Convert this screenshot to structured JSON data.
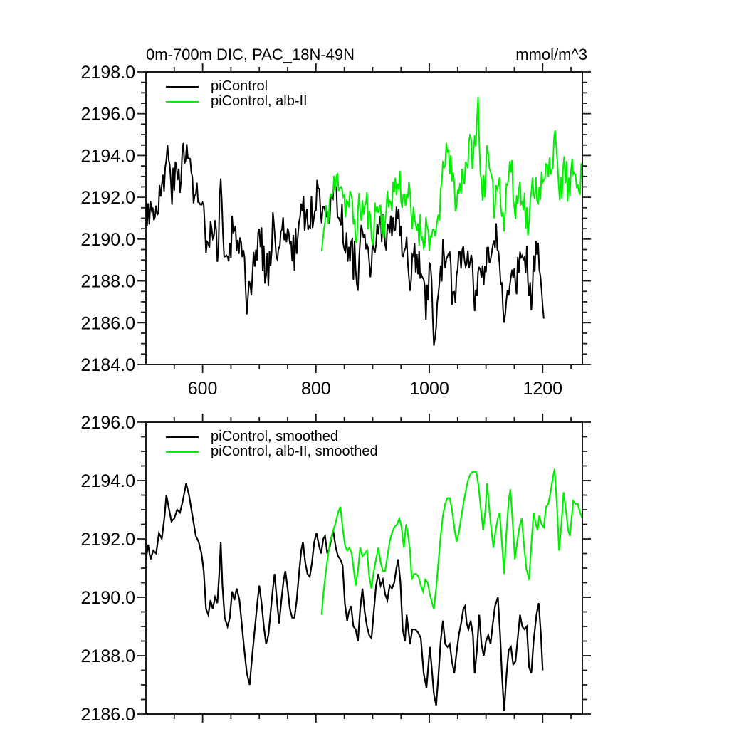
{
  "figure": {
    "background": "#ffffff",
    "text_color": "#000000",
    "frame_color": "#1a1a1a"
  },
  "chart_data": [
    {
      "type": "line",
      "title": "0m-700m DIC, PAC_18N-49N",
      "units_label": "mmol/m^3",
      "grid": false,
      "legend_position": "top-left-inside",
      "x_axis": {
        "min": 500,
        "max": 1270,
        "major_ticks": [
          600,
          800,
          1000,
          1200
        ],
        "major_tick_labels": [
          "600",
          "800",
          "1000",
          "1200"
        ],
        "minor_step": 50,
        "show_tick_labels": true
      },
      "y_axis": {
        "min": 2184,
        "max": 2198,
        "major_ticks": [
          2184,
          2186,
          2188,
          2190,
          2192,
          2194,
          2196,
          2198
        ],
        "major_tick_labels": [
          "2184.0",
          "2186.0",
          "2188.0",
          "2190.0",
          "2192.0",
          "2194.0",
          "2196.0",
          "2198.0"
        ],
        "minor_step": 0.5,
        "show_tick_labels": true
      },
      "legend": [
        {
          "label": "piControl",
          "color": "#000000"
        },
        {
          "label": "piControl, alb-II",
          "color": "#00ee00"
        }
      ],
      "series": [
        {
          "name": "piControl",
          "color": "#000000",
          "mode": "raw",
          "source": "piControl",
          "x_start": 500,
          "x_end": 1202,
          "stroke_width": 2,
          "noise": {
            "amplitude": 1.0,
            "step": 2,
            "seed": 3
          },
          "spikes": [
            [
              537,
              2194.5
            ],
            [
              566,
              2194.6
            ],
            [
              631,
              2192.9
            ],
            [
              678,
              2186.4
            ],
            [
              1007,
              2184.9
            ],
            [
              1131,
              2186.0
            ],
            [
              1201,
              2186.2
            ]
          ]
        },
        {
          "name": "piControl, alb-II",
          "color": "#00ee00",
          "mode": "raw",
          "source": "piControl_albII",
          "x_start": 810,
          "x_end": 1270,
          "stroke_width": 2,
          "noise": {
            "amplitude": 0.95,
            "step": 2,
            "seed": 11
          },
          "spikes": [
            [
              1029,
              2194.6
            ],
            [
              1086,
              2196.8
            ],
            [
              1101,
              2194.5
            ],
            [
              1221,
              2195.2
            ]
          ]
        }
      ]
    },
    {
      "type": "line",
      "title": "",
      "units_label": "",
      "grid": false,
      "legend_position": "top-left-inside",
      "x_axis": {
        "min": 500,
        "max": 1270,
        "major_ticks": [
          600,
          800,
          1000,
          1200
        ],
        "major_tick_labels": [],
        "minor_step": 50,
        "show_tick_labels": false
      },
      "y_axis": {
        "min": 2186,
        "max": 2196,
        "major_ticks": [
          2186,
          2188,
          2190,
          2192,
          2194,
          2196
        ],
        "major_tick_labels": [
          "2186.0",
          "2188.0",
          "2190.0",
          "2192.0",
          "2194.0",
          "2196.0"
        ],
        "minor_step": 0.5,
        "show_tick_labels": true
      },
      "legend": [
        {
          "label": "piControl, smoothed",
          "color": "#000000"
        },
        {
          "label": "piControl, alb-II, smoothed",
          "color": "#00ee00"
        }
      ],
      "series": [
        {
          "name": "piControl, smoothed",
          "color": "#000000",
          "mode": "smoothed",
          "source": "piControl",
          "stroke_width": 2.2
        },
        {
          "name": "piControl, alb-II, smoothed",
          "color": "#00ee00",
          "mode": "smoothed",
          "source": "piControl_albII",
          "stroke_width": 2.2
        }
      ]
    }
  ],
  "series_keyframes": {
    "piControl": [
      [
        500,
        2191.3
      ],
      [
        504,
        2191.8
      ],
      [
        508,
        2191.3
      ],
      [
        513,
        2191.6
      ],
      [
        518,
        2191.5
      ],
      [
        523,
        2192.2
      ],
      [
        528,
        2192.0
      ],
      [
        533,
        2192.8
      ],
      [
        536,
        2193.5
      ],
      [
        540,
        2193.1
      ],
      [
        545,
        2192.6
      ],
      [
        550,
        2192.7
      ],
      [
        555,
        2193.0
      ],
      [
        560,
        2192.9
      ],
      [
        565,
        2193.3
      ],
      [
        571,
        2193.9
      ],
      [
        576,
        2193.5
      ],
      [
        582,
        2192.8
      ],
      [
        588,
        2192.1
      ],
      [
        593,
        2191.9
      ],
      [
        598,
        2191.5
      ],
      [
        602,
        2190.9
      ],
      [
        606,
        2189.6
      ],
      [
        610,
        2189.4
      ],
      [
        614,
        2189.9
      ],
      [
        618,
        2189.6
      ],
      [
        622,
        2190.0
      ],
      [
        626,
        2189.8
      ],
      [
        630,
        2191.0
      ],
      [
        632,
        2191.9
      ],
      [
        635,
        2190.4
      ],
      [
        639,
        2189.3
      ],
      [
        644,
        2189.0
      ],
      [
        648,
        2189.3
      ],
      [
        652,
        2190.2
      ],
      [
        656,
        2189.9
      ],
      [
        660,
        2190.3
      ],
      [
        665,
        2189.9
      ],
      [
        669,
        2189.1
      ],
      [
        673,
        2188.3
      ],
      [
        678,
        2187.4
      ],
      [
        683,
        2187.0
      ],
      [
        687,
        2187.9
      ],
      [
        692,
        2188.9
      ],
      [
        697,
        2189.9
      ],
      [
        700,
        2190.4
      ],
      [
        704,
        2189.8
      ],
      [
        708,
        2189.0
      ],
      [
        712,
        2188.4
      ],
      [
        716,
        2188.7
      ],
      [
        720,
        2189.5
      ],
      [
        724,
        2190.3
      ],
      [
        727,
        2190.8
      ],
      [
        731,
        2189.9
      ],
      [
        735,
        2189.1
      ],
      [
        739,
        2189.9
      ],
      [
        743,
        2190.6
      ],
      [
        746,
        2190.9
      ],
      [
        750,
        2190.3
      ],
      [
        754,
        2189.6
      ],
      [
        758,
        2189.3
      ],
      [
        762,
        2189.3
      ],
      [
        766,
        2189.9
      ],
      [
        770,
        2190.8
      ],
      [
        774,
        2191.6
      ],
      [
        777,
        2191.9
      ],
      [
        781,
        2191.2
      ],
      [
        785,
        2190.8
      ],
      [
        789,
        2190.7
      ],
      [
        793,
        2191.2
      ],
      [
        797,
        2191.9
      ],
      [
        801,
        2192.2
      ],
      [
        805,
        2191.8
      ],
      [
        809,
        2191.5
      ],
      [
        813,
        2192.0
      ],
      [
        816,
        2192.1
      ],
      [
        820,
        2191.5
      ],
      [
        824,
        2191.7
      ],
      [
        828,
        2192.1
      ],
      [
        831,
        2192.2
      ],
      [
        835,
        2191.7
      ],
      [
        839,
        2191.4
      ],
      [
        843,
        2191.3
      ],
      [
        847,
        2191.1
      ],
      [
        851,
        2189.8
      ],
      [
        855,
        2189.2
      ],
      [
        858,
        2189.5
      ],
      [
        862,
        2189.7
      ],
      [
        866,
        2189.0
      ],
      [
        870,
        2188.9
      ],
      [
        874,
        2188.5
      ],
      [
        878,
        2189.6
      ],
      [
        882,
        2190.3
      ],
      [
        886,
        2189.5
      ],
      [
        890,
        2189.0
      ],
      [
        894,
        2188.7
      ],
      [
        898,
        2188.6
      ],
      [
        902,
        2189.5
      ],
      [
        906,
        2190.4
      ],
      [
        910,
        2190.8
      ],
      [
        914,
        2190.4
      ],
      [
        918,
        2190.6
      ],
      [
        922,
        2190.1
      ],
      [
        926,
        2189.9
      ],
      [
        930,
        2190.4
      ],
      [
        934,
        2190.3
      ],
      [
        938,
        2190.5
      ],
      [
        942,
        2191.0
      ],
      [
        945,
        2191.3
      ],
      [
        949,
        2190.5
      ],
      [
        953,
        2188.9
      ],
      [
        957,
        2188.5
      ],
      [
        960,
        2189.4
      ],
      [
        963,
        2188.9
      ],
      [
        966,
        2188.4
      ],
      [
        970,
        2188.9
      ],
      [
        975,
        2188.9
      ],
      [
        980,
        2188.8
      ],
      [
        985,
        2188.6
      ],
      [
        990,
        2187.4
      ],
      [
        995,
        2186.9
      ],
      [
        998,
        2187.6
      ],
      [
        1001,
        2188.3
      ],
      [
        1005,
        2187.4
      ],
      [
        1008,
        2186.7
      ],
      [
        1012,
        2186.3
      ],
      [
        1016,
        2187.3
      ],
      [
        1020,
        2188.5
      ],
      [
        1024,
        2189.2
      ],
      [
        1028,
        2188.4
      ],
      [
        1032,
        2188.3
      ],
      [
        1036,
        2188.4
      ],
      [
        1040,
        2187.8
      ],
      [
        1044,
        2187.4
      ],
      [
        1048,
        2188.1
      ],
      [
        1052,
        2188.7
      ],
      [
        1056,
        2189.1
      ],
      [
        1060,
        2189.6
      ],
      [
        1063,
        2189.7
      ],
      [
        1066,
        2189.1
      ],
      [
        1069,
        2188.9
      ],
      [
        1073,
        2189.2
      ],
      [
        1077,
        2188.7
      ],
      [
        1080,
        2187.4
      ],
      [
        1084,
        2188.2
      ],
      [
        1088,
        2189.4
      ],
      [
        1092,
        2188.4
      ],
      [
        1096,
        2188.0
      ],
      [
        1100,
        2188.5
      ],
      [
        1104,
        2188.7
      ],
      [
        1108,
        2188.4
      ],
      [
        1112,
        2189.1
      ],
      [
        1116,
        2189.7
      ],
      [
        1121,
        2190.0
      ],
      [
        1125,
        2188.7
      ],
      [
        1128,
        2187.4
      ],
      [
        1132,
        2186.1
      ],
      [
        1136,
        2187.3
      ],
      [
        1140,
        2188.2
      ],
      [
        1144,
        2188.3
      ],
      [
        1148,
        2187.7
      ],
      [
        1152,
        2187.8
      ],
      [
        1156,
        2188.6
      ],
      [
        1160,
        2189.4
      ],
      [
        1164,
        2189.0
      ],
      [
        1168,
        2188.9
      ],
      [
        1172,
        2189.0
      ],
      [
        1176,
        2187.6
      ],
      [
        1180,
        2187.4
      ],
      [
        1184,
        2188.5
      ],
      [
        1189,
        2189.4
      ],
      [
        1193,
        2189.8
      ],
      [
        1197,
        2188.7
      ],
      [
        1200,
        2187.5
      ]
    ],
    "piControl_albII": [
      [
        810,
        2189.4
      ],
      [
        813,
        2190.1
      ],
      [
        817,
        2190.8
      ],
      [
        821,
        2191.4
      ],
      [
        825,
        2191.9
      ],
      [
        829,
        2192.2
      ],
      [
        834,
        2192.5
      ],
      [
        839,
        2192.9
      ],
      [
        843,
        2193.1
      ],
      [
        847,
        2192.4
      ],
      [
        851,
        2191.8
      ],
      [
        855,
        2191.6
      ],
      [
        859,
        2191.7
      ],
      [
        863,
        2191.5
      ],
      [
        867,
        2190.9
      ],
      [
        870,
        2190.4
      ],
      [
        874,
        2190.9
      ],
      [
        878,
        2191.7
      ],
      [
        882,
        2191.4
      ],
      [
        886,
        2191.5
      ],
      [
        890,
        2191.6
      ],
      [
        894,
        2190.7
      ],
      [
        898,
        2190.3
      ],
      [
        902,
        2190.9
      ],
      [
        906,
        2191.3
      ],
      [
        910,
        2191.7
      ],
      [
        914,
        2191.2
      ],
      [
        918,
        2190.9
      ],
      [
        922,
        2190.9
      ],
      [
        926,
        2191.4
      ],
      [
        930,
        2191.9
      ],
      [
        934,
        2192.2
      ],
      [
        938,
        2192.4
      ],
      [
        943,
        2192.5
      ],
      [
        947,
        2192.7
      ],
      [
        951,
        2192.4
      ],
      [
        955,
        2191.7
      ],
      [
        959,
        2192.5
      ],
      [
        962,
        2192.2
      ],
      [
        966,
        2191.6
      ],
      [
        969,
        2190.6
      ],
      [
        973,
        2190.8
      ],
      [
        977,
        2190.8
      ],
      [
        981,
        2190.7
      ],
      [
        985,
        2190.4
      ],
      [
        989,
        2190.2
      ],
      [
        993,
        2190.6
      ],
      [
        997,
        2190.5
      ],
      [
        1001,
        2190.1
      ],
      [
        1005,
        2189.8
      ],
      [
        1008,
        2189.6
      ],
      [
        1012,
        2190.3
      ],
      [
        1016,
        2191.2
      ],
      [
        1020,
        2192.1
      ],
      [
        1024,
        2192.8
      ],
      [
        1028,
        2193.2
      ],
      [
        1032,
        2193.4
      ],
      [
        1036,
        2193.4
      ],
      [
        1040,
        2193.0
      ],
      [
        1044,
        2192.4
      ],
      [
        1048,
        2191.9
      ],
      [
        1052,
        2192.2
      ],
      [
        1056,
        2192.7
      ],
      [
        1060,
        2193.2
      ],
      [
        1064,
        2193.6
      ],
      [
        1068,
        2194.0
      ],
      [
        1072,
        2194.2
      ],
      [
        1076,
        2194.3
      ],
      [
        1080,
        2194.3
      ],
      [
        1083,
        2194.3
      ],
      [
        1087,
        2193.8
      ],
      [
        1091,
        2193.0
      ],
      [
        1095,
        2192.3
      ],
      [
        1099,
        2193.0
      ],
      [
        1102,
        2193.9
      ],
      [
        1106,
        2193.0
      ],
      [
        1110,
        2192.2
      ],
      [
        1113,
        2191.7
      ],
      [
        1117,
        2192.3
      ],
      [
        1121,
        2192.7
      ],
      [
        1124,
        2192.9
      ],
      [
        1128,
        2191.9
      ],
      [
        1132,
        2190.8
      ],
      [
        1136,
        2192.2
      ],
      [
        1140,
        2193.3
      ],
      [
        1143,
        2193.7
      ],
      [
        1147,
        2192.6
      ],
      [
        1151,
        2191.3
      ],
      [
        1155,
        2191.9
      ],
      [
        1159,
        2192.4
      ],
      [
        1163,
        2192.7
      ],
      [
        1167,
        2191.8
      ],
      [
        1171,
        2191.0
      ],
      [
        1176,
        2190.6
      ],
      [
        1180,
        2191.8
      ],
      [
        1184,
        2192.9
      ],
      [
        1188,
        2192.5
      ],
      [
        1191,
        2192.3
      ],
      [
        1194,
        2192.8
      ],
      [
        1198,
        2192.5
      ],
      [
        1202,
        2192.4
      ],
      [
        1206,
        2193.1
      ],
      [
        1210,
        2193.2
      ],
      [
        1214,
        2193.6
      ],
      [
        1218,
        2194.1
      ],
      [
        1221,
        2194.4
      ],
      [
        1225,
        2193.2
      ],
      [
        1229,
        2191.6
      ],
      [
        1233,
        2192.5
      ],
      [
        1237,
        2193.6
      ],
      [
        1241,
        2193.0
      ],
      [
        1245,
        2192.3
      ],
      [
        1248,
        2192.1
      ],
      [
        1251,
        2192.7
      ],
      [
        1254,
        2193.3
      ],
      [
        1258,
        2193.2
      ],
      [
        1262,
        2193.2
      ],
      [
        1266,
        2192.9
      ],
      [
        1270,
        2192.7
      ]
    ]
  }
}
